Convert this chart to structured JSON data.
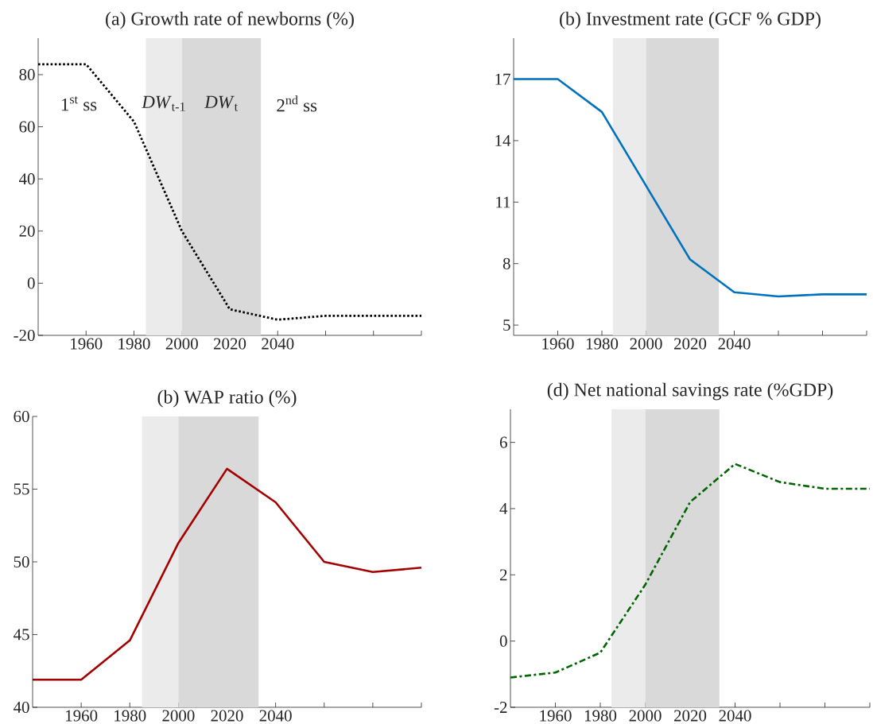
{
  "chart_data": [
    {
      "type": "line",
      "title": "(a) Growth rate of newborns (%)",
      "x": [
        1940,
        1960,
        1980,
        2000,
        2020,
        2040,
        2060,
        2080,
        2100
      ],
      "series": [
        {
          "color": "#000000",
          "values": [
            84,
            84,
            62,
            20,
            -10,
            -14,
            -12.5,
            -12.5,
            -12.5
          ]
        }
      ],
      "line_style": "dotted",
      "xlim": [
        1940,
        2100
      ],
      "ylim": [
        -20,
        94
      ],
      "xticks": [
        1960,
        1980,
        2000,
        2020,
        2040,
        {
          "value": 2060,
          "label": null
        },
        {
          "value": 2080,
          "label": null
        },
        {
          "value": 2100,
          "label": null
        }
      ],
      "yticks": [
        -20,
        0,
        20,
        40,
        60,
        80
      ],
      "bands": [
        {
          "axis": "x",
          "from": 1985,
          "to": 2000,
          "color": "#ebebeb"
        },
        {
          "axis": "x",
          "from": 2000,
          "to": 2033,
          "color": "#d9d9d9"
        }
      ],
      "annotations": [
        "1$^{st}$ ss",
        "*DW*$_{t-1}$",
        "*DW*$_{t}$",
        "2$^{nd}$ ss"
      ]
    },
    {
      "type": "line",
      "title": "(b) Investment rate (GCF % GDP)",
      "x": [
        1940,
        1960,
        1980,
        2000,
        2020,
        2040,
        2060,
        2080,
        2100
      ],
      "series": [
        {
          "color": "#0072bd",
          "values": [
            17,
            17,
            15.4,
            11.8,
            8.2,
            6.6,
            6.4,
            6.5,
            6.5
          ]
        }
      ],
      "line_style": "solid",
      "xlim": [
        1940,
        2100
      ],
      "ylim": [
        4.5,
        19
      ],
      "xticks": [
        1960,
        1980,
        2000,
        2020,
        2040,
        {
          "value": 2060,
          "label": null
        },
        {
          "value": 2080,
          "label": null
        },
        {
          "value": 2100,
          "label": null
        }
      ],
      "yticks": [
        5,
        8,
        11,
        14,
        17
      ],
      "bands": [
        {
          "axis": "x",
          "from": 1985,
          "to": 2000,
          "color": "#ebebeb"
        },
        {
          "axis": "x",
          "from": 2000,
          "to": 2033,
          "color": "#d9d9d9"
        }
      ]
    },
    {
      "type": "line",
      "title": "(b) WAP ratio (%)",
      "x": [
        1940,
        1960,
        1980,
        2000,
        2020,
        2040,
        2060,
        2080,
        2100
      ],
      "series": [
        {
          "color": "#a50000",
          "values": [
            41.9,
            41.9,
            44.6,
            51.3,
            56.4,
            54.1,
            50.0,
            49.3,
            49.6
          ]
        }
      ],
      "line_style": "solid",
      "xlim": [
        1940,
        2100
      ],
      "ylim": [
        40,
        60
      ],
      "xticks": [
        1960,
        1980,
        2000,
        2020,
        2040,
        {
          "value": 2060,
          "label": null
        },
        {
          "value": 2080,
          "label": null
        },
        {
          "value": 2100,
          "label": null
        }
      ],
      "yticks": [
        40,
        45,
        50,
        55,
        60
      ],
      "bands": [
        {
          "axis": "x",
          "from": 1985,
          "to": 2000,
          "color": "#ebebeb"
        },
        {
          "axis": "x",
          "from": 2000,
          "to": 2033,
          "color": "#d9d9d9"
        }
      ]
    },
    {
      "type": "line",
      "title": "(d) Net national savings rate (%GDP)",
      "x": [
        1940,
        1960,
        1980,
        2000,
        2020,
        2040,
        2060,
        2080,
        2100
      ],
      "series": [
        {
          "color": "#006400",
          "values": [
            -1.1,
            -0.95,
            -0.35,
            1.7,
            4.2,
            5.35,
            4.8,
            4.6,
            4.6
          ]
        }
      ],
      "line_style": "dashdot",
      "xlim": [
        1940,
        2100
      ],
      "ylim": [
        -2,
        7
      ],
      "xticks": [
        1960,
        1980,
        2000,
        2020,
        2040,
        {
          "value": 2060,
          "label": null
        },
        {
          "value": 2080,
          "label": null
        },
        {
          "value": 2100,
          "label": null
        }
      ],
      "yticks": [
        -2,
        0,
        2,
        4,
        6
      ],
      "bands": [
        {
          "axis": "x",
          "from": 1985,
          "to": 2000,
          "color": "#ebebeb"
        },
        {
          "axis": "x",
          "from": 2000,
          "to": 2033,
          "color": "#d9d9d9"
        }
      ]
    }
  ]
}
